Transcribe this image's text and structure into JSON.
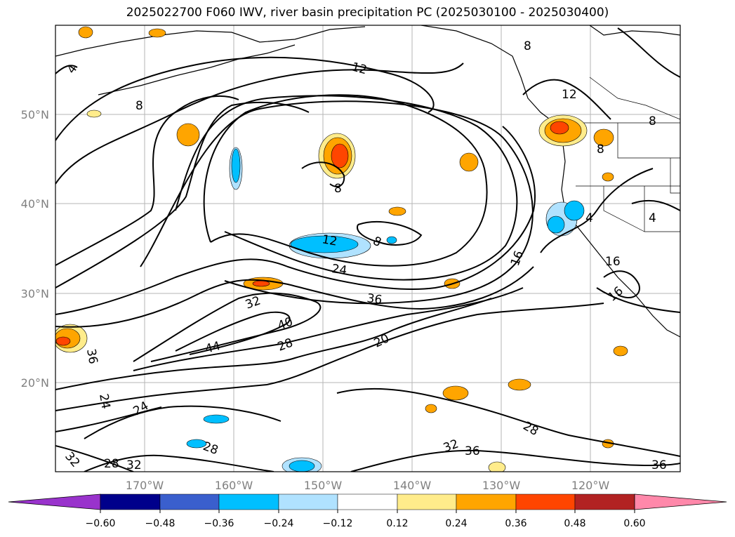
{
  "title": "2025022700 F060 IWV, river basin precipitation PC (2025030100 - 2025030400)",
  "lat_ticks": [
    "20°N",
    "30°N",
    "40°N",
    "50°N"
  ],
  "lon_ticks": [
    "170°W",
    "160°W",
    "150°W",
    "140°W",
    "130°W",
    "120°W"
  ],
  "colorbar": {
    "tick_labels": [
      "−0.60",
      "−0.48",
      "−0.36",
      "−0.24",
      "−0.12",
      "0.12",
      "0.24",
      "0.36",
      "0.48",
      "0.60"
    ],
    "colors": [
      "#9933cc",
      "#00008b",
      "#3a5fcd",
      "#00bfff",
      "#b0e2ff",
      "#ffffff",
      "#ffec8b",
      "#ffa500",
      "#ff4500",
      "#b22222",
      "#ff88aa"
    ]
  },
  "contour_labels": [
    "4",
    "8",
    "12",
    "8",
    "12",
    "8",
    "8",
    "8",
    "12",
    "8",
    "24",
    "16",
    "16",
    "16",
    "4",
    "4",
    "36",
    "32",
    "40",
    "28",
    "44",
    "20",
    "36",
    "24",
    "24",
    "28",
    "28",
    "32",
    "36",
    "32",
    "36",
    "28",
    "32"
  ]
}
